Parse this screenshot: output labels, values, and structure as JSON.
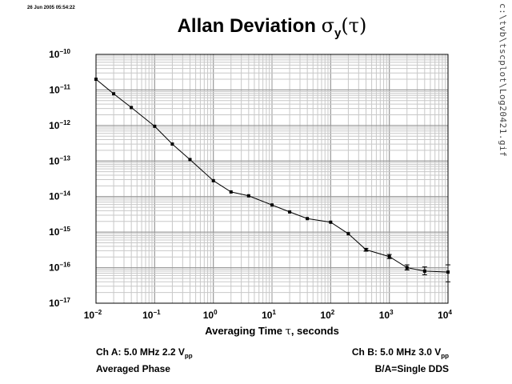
{
  "timestamp": "26 Jun 2005 05:54:22",
  "file_path": "c:\\tvb\\tscplot\\Log20421.gif",
  "chart_data": {
    "type": "line",
    "title": "Allan Deviation",
    "title_symbol": "σ",
    "title_symbol_sub": "y",
    "title_symbol_arg": "(τ)",
    "xlabel_prefix": "Averaging Time",
    "xlabel_symbol": "τ",
    "xlabel_suffix": ", seconds",
    "xscale": "log",
    "yscale": "log",
    "xlim": [
      0.01,
      10000
    ],
    "ylim": [
      1e-17,
      1e-10
    ],
    "grid": true,
    "x_tick_labels": [
      {
        "base": "10",
        "exp": "−2"
      },
      {
        "base": "10",
        "exp": "−1"
      },
      {
        "base": "10",
        "exp": "0"
      },
      {
        "base": "10",
        "exp": "1"
      },
      {
        "base": "10",
        "exp": "2"
      },
      {
        "base": "10",
        "exp": "3"
      },
      {
        "base": "10",
        "exp": "4"
      }
    ],
    "y_tick_labels": [
      {
        "base": "10",
        "exp": "−10"
      },
      {
        "base": "10",
        "exp": "−11"
      },
      {
        "base": "10",
        "exp": "−12"
      },
      {
        "base": "10",
        "exp": "−13"
      },
      {
        "base": "10",
        "exp": "−14"
      },
      {
        "base": "10",
        "exp": "−15"
      },
      {
        "base": "10",
        "exp": "−16"
      },
      {
        "base": "10",
        "exp": "−17"
      }
    ],
    "series": [
      {
        "color": "#000000",
        "points": [
          {
            "x": 0.01,
            "y": 2e-11
          },
          {
            "x": 0.02,
            "y": 7.8e-12
          },
          {
            "x": 0.04,
            "y": 3.2e-12
          },
          {
            "x": 0.1,
            "y": 9.5e-13
          },
          {
            "x": 0.2,
            "y": 3e-13
          },
          {
            "x": 0.4,
            "y": 1.1e-13
          },
          {
            "x": 1,
            "y": 2.8e-14
          },
          {
            "x": 2,
            "y": 1.35e-14
          },
          {
            "x": 4,
            "y": 1.05e-14
          },
          {
            "x": 10,
            "y": 5.8e-15
          },
          {
            "x": 20,
            "y": 3.7e-15
          },
          {
            "x": 40,
            "y": 2.4e-15
          },
          {
            "x": 100,
            "y": 1.9e-15
          },
          {
            "x": 200,
            "y": 9e-16
          },
          {
            "x": 400,
            "y": 3.2e-16,
            "err": [
              2.9e-16,
              3.5e-16
            ]
          },
          {
            "x": 1000,
            "y": 2.05e-16,
            "err": [
              1.8e-16,
              2.35e-16
            ]
          },
          {
            "x": 2000,
            "y": 1e-16,
            "err": [
              8.6e-17,
              1.2e-16
            ]
          },
          {
            "x": 4000,
            "y": 8e-17,
            "err": [
              6.3e-17,
              1.05e-16
            ]
          },
          {
            "x": 10000,
            "y": 7.5e-17,
            "err": [
              4e-17,
              1.2e-16
            ]
          }
        ]
      }
    ]
  },
  "notes": {
    "left": {
      "line1_text": "Ch A: 5.0 MHz 2.2 V",
      "line1_sub": "pp",
      "line2": "Averaged Phase"
    },
    "right": {
      "line1_text": "Ch B: 5.0 MHz 3.0 V",
      "line1_sub": "pp",
      "line2": "B/A=Single DDS"
    }
  }
}
